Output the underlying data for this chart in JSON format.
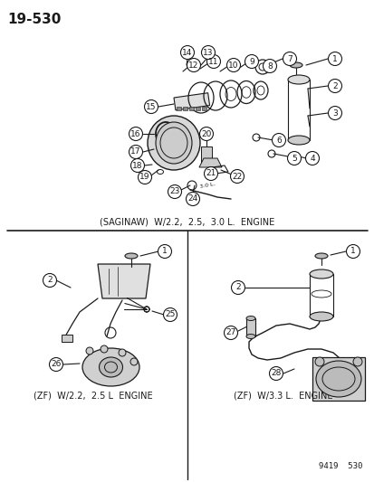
{
  "title_number": "19-530",
  "background_color": "#ffffff",
  "line_color": "#1a1a1a",
  "figsize": [
    4.14,
    5.33
  ],
  "dpi": 100,
  "saginaw_label": "(SAGINAW)  W/2.2,  2.5,  3.0 L.  ENGINE",
  "zf_left_label": "(ZF)  W/2.2,  2.5 L  ENGINE",
  "zf_right_label": "(ZF)  W/3.3 L.  ENGINE",
  "catalog_number": "9419  530"
}
